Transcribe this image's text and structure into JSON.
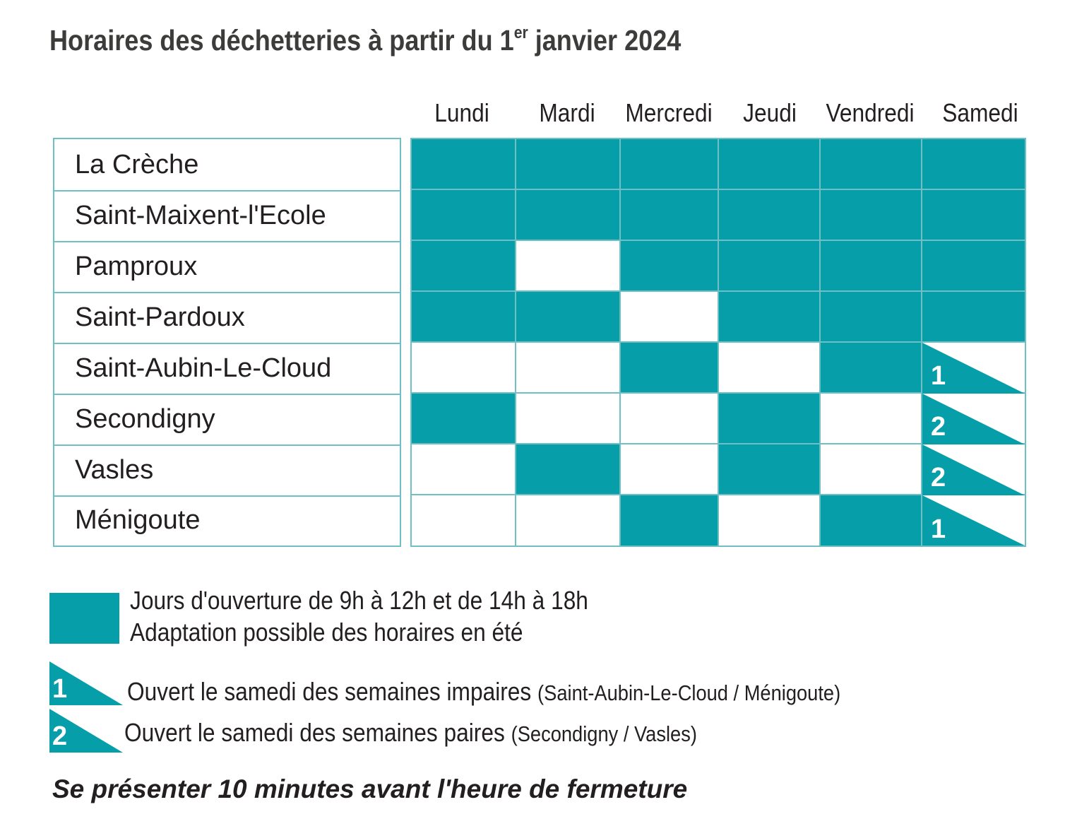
{
  "title": {
    "main": "Horaires des déchetteries à partir du 1",
    "sup": "er",
    "end": " janvier 2024"
  },
  "days": [
    "Lundi",
    "Mardi",
    "Mercredi",
    "Jeudi",
    "Vendredi",
    "Samedi"
  ],
  "sites": [
    {
      "name": "La Crèche",
      "schedule": [
        "open",
        "open",
        "open",
        "open",
        "open",
        "open"
      ]
    },
    {
      "name": "Saint-Maixent-l'Ecole",
      "schedule": [
        "open",
        "open",
        "open",
        "open",
        "open",
        "open"
      ]
    },
    {
      "name": "Pamproux",
      "schedule": [
        "open",
        "closed",
        "open",
        "open",
        "open",
        "open"
      ]
    },
    {
      "name": "Saint-Pardoux",
      "schedule": [
        "open",
        "open",
        "closed",
        "open",
        "open",
        "open"
      ]
    },
    {
      "name": "Saint-Aubin-Le-Cloud",
      "schedule": [
        "closed",
        "closed",
        "open",
        "closed",
        "open",
        "odd"
      ]
    },
    {
      "name": "Secondigny",
      "schedule": [
        "open",
        "closed",
        "closed",
        "open",
        "closed",
        "even"
      ]
    },
    {
      "name": "Vasles",
      "schedule": [
        "closed",
        "open",
        "closed",
        "open",
        "closed",
        "even"
      ]
    },
    {
      "name": "Ménigoute",
      "schedule": [
        "closed",
        "closed",
        "open",
        "closed",
        "open",
        "odd"
      ]
    }
  ],
  "legend": {
    "open_line1": "Jours d'ouverture de 9h à 12h et de 14h à 18h",
    "open_line2": "Adaptation possible des horaires en été",
    "odd_number": "1",
    "odd_text": "Ouvert le samedi des semaines impaires",
    "odd_sites": "(Saint-Aubin-Le-Cloud / Ménigoute)",
    "even_number": "2",
    "even_text": "Ouvert le samedi des semaines paires",
    "even_sites": "(Secondigny / Vasles)"
  },
  "footer": "Se présenter 10 minutes avant l'heure de fermeture",
  "colors": {
    "open": "#069ea9",
    "border": "#6fbfc5",
    "text": "#231f20"
  }
}
